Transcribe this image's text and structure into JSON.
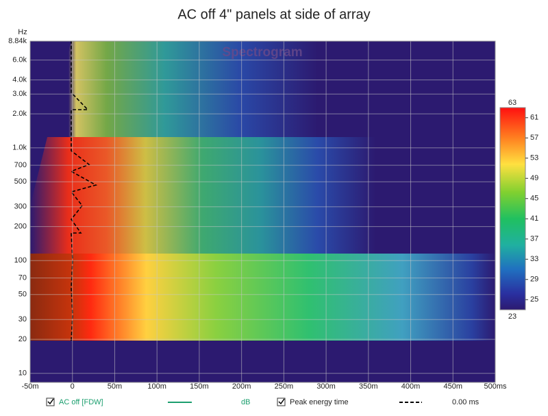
{
  "chart_data": {
    "type": "spectrogram",
    "title": "AC off 4\" panels at side of array",
    "watermark": "Spectrogram",
    "y_unit": "Hz",
    "xlim": [
      -50,
      500
    ],
    "xticks": [
      {
        "value": -50,
        "label": "-50m"
      },
      0,
      {
        "value": 50,
        "label": "50m"
      },
      {
        "value": 100,
        "label": "100m"
      },
      {
        "value": 150,
        "label": "150m"
      },
      {
        "value": 200,
        "label": "200m"
      },
      {
        "value": 250,
        "label": "250m"
      },
      {
        "value": 300,
        "label": "300m"
      },
      {
        "value": 350,
        "label": "350m"
      },
      {
        "value": 400,
        "label": "400m"
      },
      {
        "value": 450,
        "label": "450m"
      },
      {
        "value": 500,
        "label": "500ms"
      }
    ],
    "ylim": [
      8.3,
      8840
    ],
    "log_y": true,
    "yticks": [
      10,
      20,
      30,
      50,
      70,
      100,
      200,
      300,
      500,
      700,
      {
        "value": 1000,
        "label": "1.0k"
      },
      {
        "value": 2000,
        "label": "2.0k"
      },
      {
        "value": 3000,
        "label": "3.0k"
      },
      {
        "value": 4000,
        "label": "4.0k"
      },
      {
        "value": 6000,
        "label": "6.0k"
      },
      {
        "value": 8840,
        "label": "8.84k"
      }
    ],
    "grid": true,
    "zlim": [
      23,
      63
    ],
    "zticks": [
      25,
      29,
      33,
      37,
      41,
      45,
      49,
      53,
      57,
      61
    ],
    "series": [
      {
        "name": "AC off [FDW]",
        "color": "#1a9e6e",
        "unit": "dB"
      }
    ],
    "peak_energy": {
      "name": "Peak energy time",
      "color": "#000000",
      "value_label": "0.00 ms"
    }
  }
}
